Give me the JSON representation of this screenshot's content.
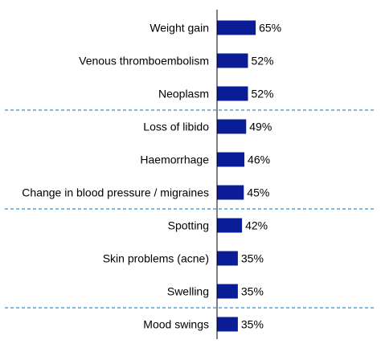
{
  "chart_data": {
    "type": "bar",
    "orientation": "horizontal",
    "categories": [
      "Weight gain",
      "Venous thromboembolism",
      "Neoplasm",
      "Loss of libido",
      "Haemorrhage",
      "Change in blood pressure / migraines",
      "Spotting",
      "Skin problems (acne)",
      "Swelling",
      "Mood swings"
    ],
    "values": [
      65,
      52,
      52,
      49,
      46,
      45,
      42,
      35,
      35,
      35
    ],
    "value_labels": [
      "65%",
      "52%",
      "52%",
      "49%",
      "46%",
      "45%",
      "42%",
      "35%",
      "35%",
      "35%"
    ],
    "title": "",
    "xlabel": "",
    "ylabel": "",
    "grid": false,
    "legend": "none",
    "group_separators_after_index": [
      2,
      5,
      8
    ],
    "colors": {
      "bar": "#0a1c96",
      "separator": "#2e8fd8",
      "axis": "#000000"
    }
  }
}
